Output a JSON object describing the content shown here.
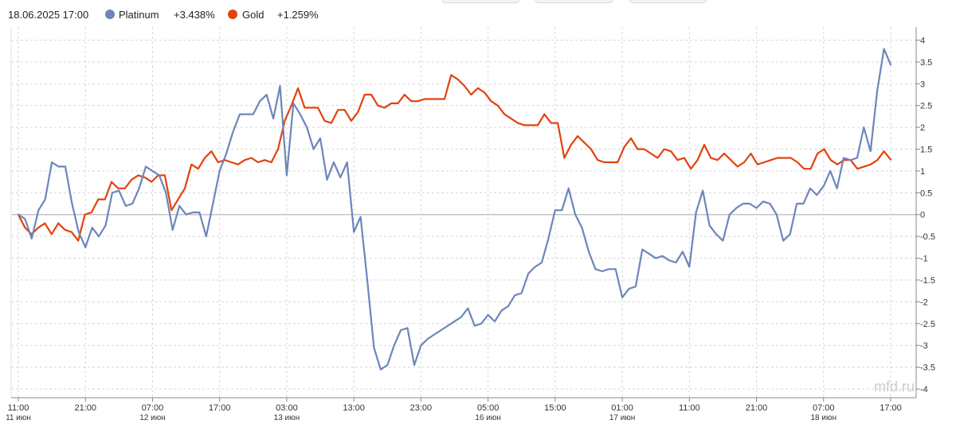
{
  "legend": {
    "datetime": "18.06.2025 17:00",
    "series": [
      {
        "name": "Platinum",
        "change": "+3.438%",
        "color": "#6c86ba"
      },
      {
        "name": "Gold",
        "change": "+1.259%",
        "color": "#e3420d"
      }
    ]
  },
  "watermark": "mfd.ru",
  "chart_data": {
    "type": "line",
    "x_label": "",
    "y_label": "",
    "ylim": [
      -4.2,
      4.3
    ],
    "y_ticks": [
      "4",
      "3.5",
      "3",
      "2.5",
      "2",
      "1.5",
      "1",
      "0.5",
      "0",
      "-0.5",
      "-1",
      "-1.5",
      "-2",
      "-2.5",
      "-3",
      "-3.5",
      "-4"
    ],
    "y_tick_values": [
      4,
      3.5,
      3,
      2.5,
      2,
      1.5,
      1,
      0.5,
      0,
      -0.5,
      -1,
      -1.5,
      -2,
      -2.5,
      -3,
      -3.5,
      -4
    ],
    "x_ticks": [
      {
        "time": "11:00",
        "date": "11 июн"
      },
      {
        "time": "21:00",
        "date": ""
      },
      {
        "time": "07:00",
        "date": "12 июн"
      },
      {
        "time": "17:00",
        "date": ""
      },
      {
        "time": "03:00",
        "date": "13 июн"
      },
      {
        "time": "13:00",
        "date": ""
      },
      {
        "time": "23:00",
        "date": ""
      },
      {
        "time": "05:00",
        "date": "16 июн"
      },
      {
        "time": "15:00",
        "date": ""
      },
      {
        "time": "01:00",
        "date": "17 июн"
      },
      {
        "time": "11:00",
        "date": ""
      },
      {
        "time": "21:00",
        "date": ""
      },
      {
        "time": "07:00",
        "date": "18 июн"
      },
      {
        "time": "17:00",
        "date": ""
      }
    ],
    "grid": true,
    "zero_line": true,
    "series": [
      {
        "name": "Platinum",
        "color": "#6c86ba",
        "values": [
          0,
          -0.1,
          -0.55,
          0.1,
          0.35,
          1.2,
          1.1,
          1.1,
          0.25,
          -0.4,
          -0.75,
          -0.3,
          -0.5,
          -0.25,
          0.5,
          0.55,
          0.2,
          0.25,
          0.6,
          1.1,
          1.0,
          0.9,
          0.5,
          -0.35,
          0.2,
          0.0,
          0.05,
          0.05,
          -0.5,
          0.25,
          1.0,
          1.4,
          1.9,
          2.3,
          2.3,
          2.3,
          2.6,
          2.75,
          2.2,
          2.95,
          0.9,
          2.55,
          2.3,
          2.0,
          1.5,
          1.75,
          0.8,
          1.2,
          0.85,
          1.2,
          -0.4,
          -0.05,
          -1.5,
          -3.05,
          -3.55,
          -3.45,
          -3.0,
          -2.65,
          -2.6,
          -3.45,
          -3.0,
          -2.85,
          -2.75,
          -2.65,
          -2.55,
          -2.45,
          -2.35,
          -2.15,
          -2.55,
          -2.5,
          -2.3,
          -2.45,
          -2.2,
          -2.1,
          -1.85,
          -1.8,
          -1.35,
          -1.2,
          -1.1,
          -0.55,
          0.1,
          0.1,
          0.6,
          0.0,
          -0.3,
          -0.85,
          -1.25,
          -1.3,
          -1.25,
          -1.25,
          -1.9,
          -1.7,
          -1.65,
          -0.8,
          -0.9,
          -1.0,
          -0.95,
          -1.05,
          -1.1,
          -0.85,
          -1.2,
          0.05,
          0.55,
          -0.25,
          -0.45,
          -0.6,
          0.0,
          0.15,
          0.25,
          0.25,
          0.15,
          0.3,
          0.25,
          0.0,
          -0.6,
          -0.45,
          0.25,
          0.25,
          0.6,
          0.45,
          0.65,
          1.0,
          0.6,
          1.3,
          1.25,
          1.3,
          2.0,
          1.45,
          2.85,
          3.8,
          3.438
        ]
      },
      {
        "name": "Gold",
        "color": "#e3420d",
        "values": [
          0,
          -0.3,
          -0.45,
          -0.3,
          -0.2,
          -0.45,
          -0.2,
          -0.35,
          -0.4,
          -0.6,
          0.0,
          0.05,
          0.35,
          0.35,
          0.75,
          0.6,
          0.6,
          0.8,
          0.9,
          0.85,
          0.75,
          0.9,
          0.9,
          0.1,
          0.35,
          0.6,
          1.15,
          1.05,
          1.3,
          1.45,
          1.2,
          1.25,
          1.2,
          1.15,
          1.25,
          1.3,
          1.2,
          1.25,
          1.2,
          1.5,
          2.15,
          2.5,
          2.9,
          2.45,
          2.45,
          2.45,
          2.15,
          2.1,
          2.4,
          2.4,
          2.15,
          2.35,
          2.75,
          2.75,
          2.5,
          2.45,
          2.55,
          2.55,
          2.75,
          2.6,
          2.6,
          2.65,
          2.65,
          2.65,
          2.65,
          3.2,
          3.1,
          2.95,
          2.75,
          2.9,
          2.8,
          2.6,
          2.5,
          2.3,
          2.2,
          2.1,
          2.05,
          2.05,
          2.05,
          2.3,
          2.1,
          2.1,
          1.3,
          1.6,
          1.8,
          1.65,
          1.5,
          1.25,
          1.2,
          1.2,
          1.2,
          1.55,
          1.75,
          1.5,
          1.5,
          1.4,
          1.3,
          1.5,
          1.45,
          1.25,
          1.3,
          1.05,
          1.25,
          1.6,
          1.3,
          1.25,
          1.4,
          1.25,
          1.1,
          1.2,
          1.4,
          1.15,
          1.2,
          1.25,
          1.3,
          1.3,
          1.3,
          1.2,
          1.05,
          1.05,
          1.4,
          1.5,
          1.25,
          1.15,
          1.25,
          1.25,
          1.05,
          1.1,
          1.15,
          1.25,
          1.45,
          1.259
        ]
      }
    ]
  }
}
